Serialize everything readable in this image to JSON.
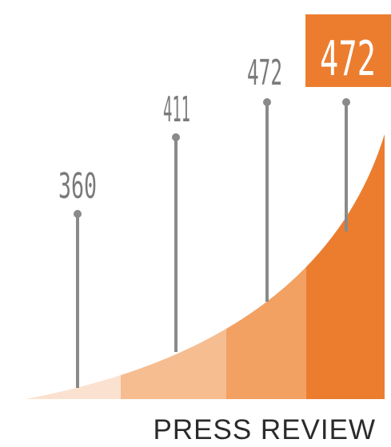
{
  "chart_data": {
    "type": "area",
    "title": "",
    "caption": "PRESS REVIEW",
    "values": [
      "360",
      "411",
      "472",
      "472"
    ],
    "highlight_index": 3,
    "colors": {
      "segments": [
        "#fbe2d0",
        "#f6bd90",
        "#f2a163",
        "#ec7d2f"
      ],
      "highlight_box": "#ec7d2f",
      "pin": "#8a8a8a",
      "label": "#7a7a7a",
      "highlight_text": "#ffffff",
      "caption": "#2b2b2b"
    }
  }
}
